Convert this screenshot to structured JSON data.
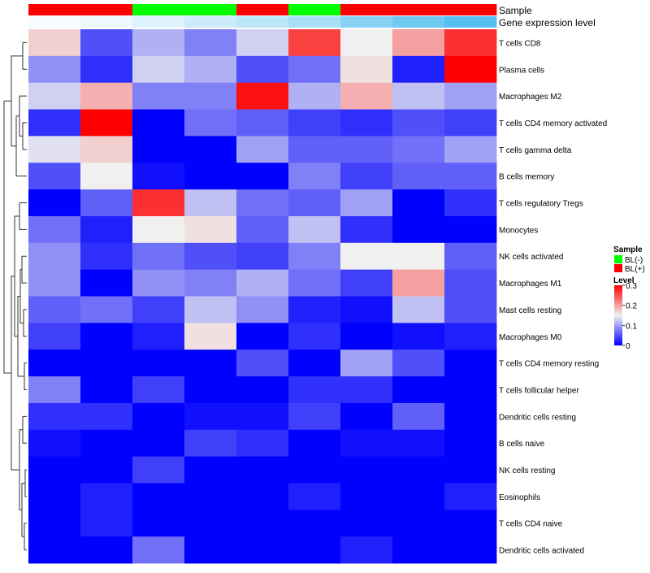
{
  "chart_data": {
    "type": "heatmap",
    "annotations": [
      {
        "name": "Sample",
        "values": [
          "BL(+)",
          "BL(+)",
          "BL(-)",
          "BL(-)",
          "BL(+)",
          "BL(-)",
          "BL(+)",
          "BL(+)",
          "BL(+)"
        ]
      },
      {
        "name": "Gene expression level",
        "values": [
          0.05,
          0.1,
          0.2,
          0.3,
          0.4,
          0.5,
          0.7,
          0.85,
          1.0
        ]
      }
    ],
    "row_labels": [
      "T cells CD8",
      "Plasma cells",
      "Macrophages M2",
      "T cells CD4 memory activated",
      "T cells gamma delta",
      "B cells memory",
      "T cells regulatory  Tregs",
      "Monocytes",
      "NK cells activated",
      "Macrophages M1",
      "Mast cells resting",
      "Macrophages M0",
      "T cells CD4 memory resting",
      "T cells follicular helper",
      "Dendritic cells resting",
      "B cells naive",
      "NK cells resting",
      "Eosinophils",
      "T cells CD4 naive",
      "Dendritic cells activated"
    ],
    "values": [
      [
        0.17,
        0.05,
        0.11,
        0.08,
        0.13,
        0.26,
        0.15,
        0.2,
        0.27
      ],
      [
        0.09,
        0.03,
        0.13,
        0.11,
        0.05,
        0.07,
        0.16,
        0.02,
        0.3
      ],
      [
        0.13,
        0.19,
        0.08,
        0.08,
        0.29,
        0.11,
        0.19,
        0.12,
        0.1
      ],
      [
        0.03,
        0.3,
        0.0,
        0.07,
        0.06,
        0.04,
        0.03,
        0.05,
        0.04
      ],
      [
        0.14,
        0.17,
        0.0,
        0.0,
        0.1,
        0.06,
        0.06,
        0.07,
        0.1
      ],
      [
        0.05,
        0.15,
        0.01,
        0.0,
        0.0,
        0.08,
        0.04,
        0.06,
        0.06
      ],
      [
        0.0,
        0.06,
        0.27,
        0.12,
        0.07,
        0.06,
        0.1,
        0.0,
        0.03
      ],
      [
        0.07,
        0.02,
        0.15,
        0.16,
        0.06,
        0.12,
        0.03,
        0.0,
        0.0
      ],
      [
        0.09,
        0.03,
        0.07,
        0.05,
        0.04,
        0.08,
        0.15,
        0.15,
        0.06
      ],
      [
        0.09,
        0.0,
        0.09,
        0.08,
        0.11,
        0.07,
        0.04,
        0.2,
        0.05
      ],
      [
        0.06,
        0.07,
        0.04,
        0.12,
        0.09,
        0.02,
        0.01,
        0.12,
        0.05
      ],
      [
        0.04,
        0.0,
        0.02,
        0.16,
        0.0,
        0.03,
        0.0,
        0.01,
        0.02
      ],
      [
        0.0,
        0.0,
        0.0,
        0.0,
        0.05,
        0.0,
        0.1,
        0.05,
        0.0
      ],
      [
        0.08,
        0.0,
        0.04,
        0.0,
        0.0,
        0.03,
        0.03,
        0.0,
        0.0
      ],
      [
        0.03,
        0.03,
        0.0,
        0.01,
        0.01,
        0.04,
        0.0,
        0.06,
        0.0
      ],
      [
        0.01,
        0.0,
        0.0,
        0.04,
        0.03,
        0.0,
        0.01,
        0.01,
        0.0
      ],
      [
        0.0,
        0.0,
        0.04,
        0.0,
        0.0,
        0.0,
        0.0,
        0.0,
        0.0
      ],
      [
        0.0,
        0.02,
        0.0,
        0.0,
        0.0,
        0.02,
        0.0,
        0.0,
        0.02
      ],
      [
        0.0,
        0.02,
        0.0,
        0.0,
        0.0,
        0.0,
        0.0,
        0.0,
        0.0
      ],
      [
        0.0,
        0.0,
        0.07,
        0.0,
        0.0,
        0.0,
        0.02,
        0.0,
        0.0
      ]
    ],
    "color_scale": {
      "min": 0,
      "mid": 0.15,
      "max": 0.3,
      "low_color": "#0000ff",
      "mid_color": "#f0f0f0",
      "high_color": "#ff0000"
    },
    "legends": {
      "sample": {
        "title": "Sample",
        "items": [
          {
            "label": "BL(-)",
            "color": "#00ff00"
          },
          {
            "label": "BL(+)",
            "color": "#ff0000"
          }
        ]
      },
      "level": {
        "title": "Level",
        "ticks": [
          0.3,
          0.2,
          0.1,
          0
        ],
        "tick_labels": [
          "0.3",
          "0.2",
          "0.1",
          "0"
        ]
      }
    },
    "gene_expression_colors": {
      "low": "#ffffff",
      "high": "#55bff0"
    },
    "row_dendrogram": true,
    "legend_position": "right"
  }
}
